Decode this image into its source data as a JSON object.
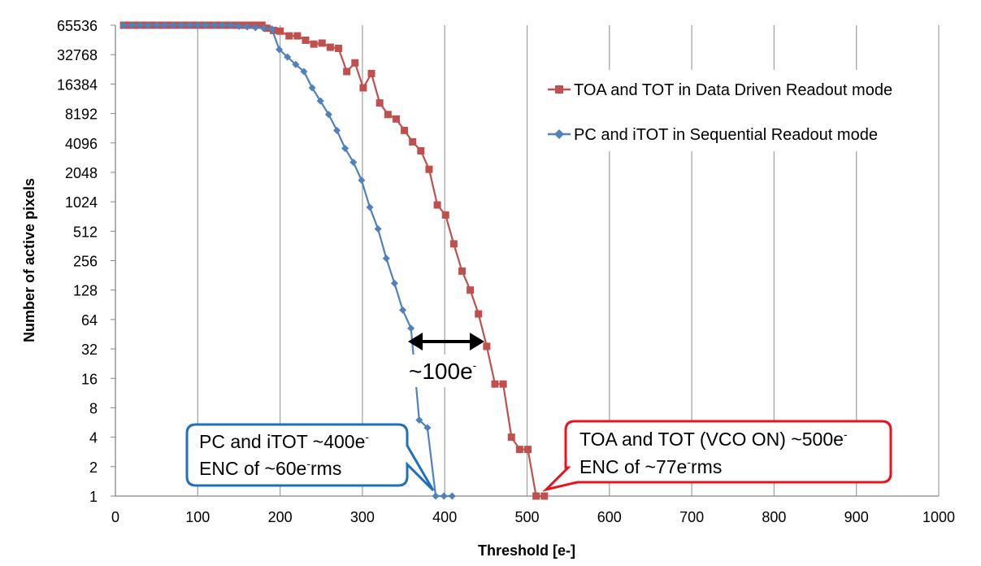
{
  "chart_data": {
    "type": "line",
    "title": "",
    "xlabel": "Threshold [e-]",
    "ylabel": "Number of active pixels",
    "xlim": [
      0,
      1000
    ],
    "x_ticks": [
      0,
      100,
      200,
      300,
      400,
      500,
      600,
      700,
      800,
      900,
      1000
    ],
    "y_scale": "log2",
    "y_ticks": [
      1,
      2,
      4,
      8,
      16,
      32,
      64,
      128,
      256,
      512,
      1024,
      2048,
      4096,
      8192,
      16384,
      32768,
      65536
    ],
    "grid": "vertical",
    "legend_position": "top-right",
    "series": [
      {
        "name": "TOA and TOT in Data Driven Readout mode",
        "color": "#c0504d",
        "marker": "square",
        "points": [
          [
            10,
            65536
          ],
          [
            17,
            65536
          ],
          [
            24,
            65536
          ],
          [
            31,
            65536
          ],
          [
            38,
            65536
          ],
          [
            45,
            65536
          ],
          [
            52,
            65536
          ],
          [
            59,
            65536
          ],
          [
            66,
            65536
          ],
          [
            73,
            65536
          ],
          [
            80,
            65536
          ],
          [
            87,
            65536
          ],
          [
            94,
            65536
          ],
          [
            101,
            65536
          ],
          [
            108,
            65536
          ],
          [
            115,
            65536
          ],
          [
            122,
            65536
          ],
          [
            129,
            65536
          ],
          [
            136,
            65536
          ],
          [
            143,
            65536
          ],
          [
            150,
            65536
          ],
          [
            157,
            65536
          ],
          [
            164,
            65536
          ],
          [
            171,
            65536
          ],
          [
            178,
            65536
          ],
          [
            184,
            61000
          ],
          [
            192,
            58000
          ],
          [
            200,
            57000
          ],
          [
            211,
            51000
          ],
          [
            221,
            51000
          ],
          [
            231,
            46000
          ],
          [
            241,
            42000
          ],
          [
            251,
            43000
          ],
          [
            261,
            39000
          ],
          [
            271,
            38000
          ],
          [
            281,
            22000
          ],
          [
            291,
            27000
          ],
          [
            301,
            15000
          ],
          [
            311,
            21000
          ],
          [
            321,
            10500
          ],
          [
            331,
            8000
          ],
          [
            341,
            7200
          ],
          [
            351,
            5500
          ],
          [
            361,
            4200
          ],
          [
            371,
            3400
          ],
          [
            381,
            2200
          ],
          [
            391,
            950
          ],
          [
            401,
            750
          ],
          [
            411,
            380
          ],
          [
            421,
            200
          ],
          [
            431,
            128
          ],
          [
            441,
            73
          ],
          [
            451,
            34
          ],
          [
            461,
            14
          ],
          [
            471,
            14
          ],
          [
            481,
            4
          ],
          [
            491,
            3
          ],
          [
            501,
            3
          ],
          [
            511,
            1
          ],
          [
            521,
            1
          ]
        ]
      },
      {
        "name": "PC and iTOT in Sequential Readout mode",
        "color": "#4f81bd",
        "marker": "diamond",
        "points": [
          [
            10,
            65536
          ],
          [
            20,
            65536
          ],
          [
            30,
            65536
          ],
          [
            40,
            65536
          ],
          [
            50,
            65536
          ],
          [
            60,
            65536
          ],
          [
            70,
            65536
          ],
          [
            80,
            65536
          ],
          [
            90,
            65536
          ],
          [
            100,
            65536
          ],
          [
            110,
            65536
          ],
          [
            120,
            65536
          ],
          [
            130,
            65536
          ],
          [
            140,
            65536
          ],
          [
            150,
            64000
          ],
          [
            160,
            63000
          ],
          [
            170,
            62000
          ],
          [
            180,
            61000
          ],
          [
            190,
            60000
          ],
          [
            199,
            37000
          ],
          [
            209,
            31000
          ],
          [
            219,
            26000
          ],
          [
            229,
            22000
          ],
          [
            239,
            15000
          ],
          [
            249,
            11000
          ],
          [
            259,
            8000
          ],
          [
            269,
            5500
          ],
          [
            279,
            3600
          ],
          [
            289,
            2600
          ],
          [
            299,
            1700
          ],
          [
            309,
            900
          ],
          [
            319,
            540
          ],
          [
            329,
            270
          ],
          [
            339,
            150
          ],
          [
            349,
            80
          ],
          [
            359,
            52
          ],
          [
            369,
            6
          ],
          [
            379,
            5
          ],
          [
            389,
            1
          ],
          [
            399,
            1
          ],
          [
            409,
            1
          ]
        ]
      }
    ]
  },
  "annotations": {
    "difference_label": "~100e",
    "difference_sup": "-",
    "pc_line1": "PC and iTOT ~400e",
    "pc_line1_sup": "-",
    "pc_line2_a": "ENC of ~60e",
    "pc_line2_sup": "-",
    "pc_line2_b": "rms",
    "toa_line1": "TOA and TOT (VCO ON) ~500e",
    "toa_line1_sup": "-",
    "toa_line2_a": "ENC of ~77e",
    "toa_line2_sup": "-",
    "toa_line2_b": "rms"
  },
  "colors": {
    "pc_callout_border": "#1f6fbf",
    "toa_callout_border": "#e8141c",
    "gridline": "#a6a6a6"
  }
}
